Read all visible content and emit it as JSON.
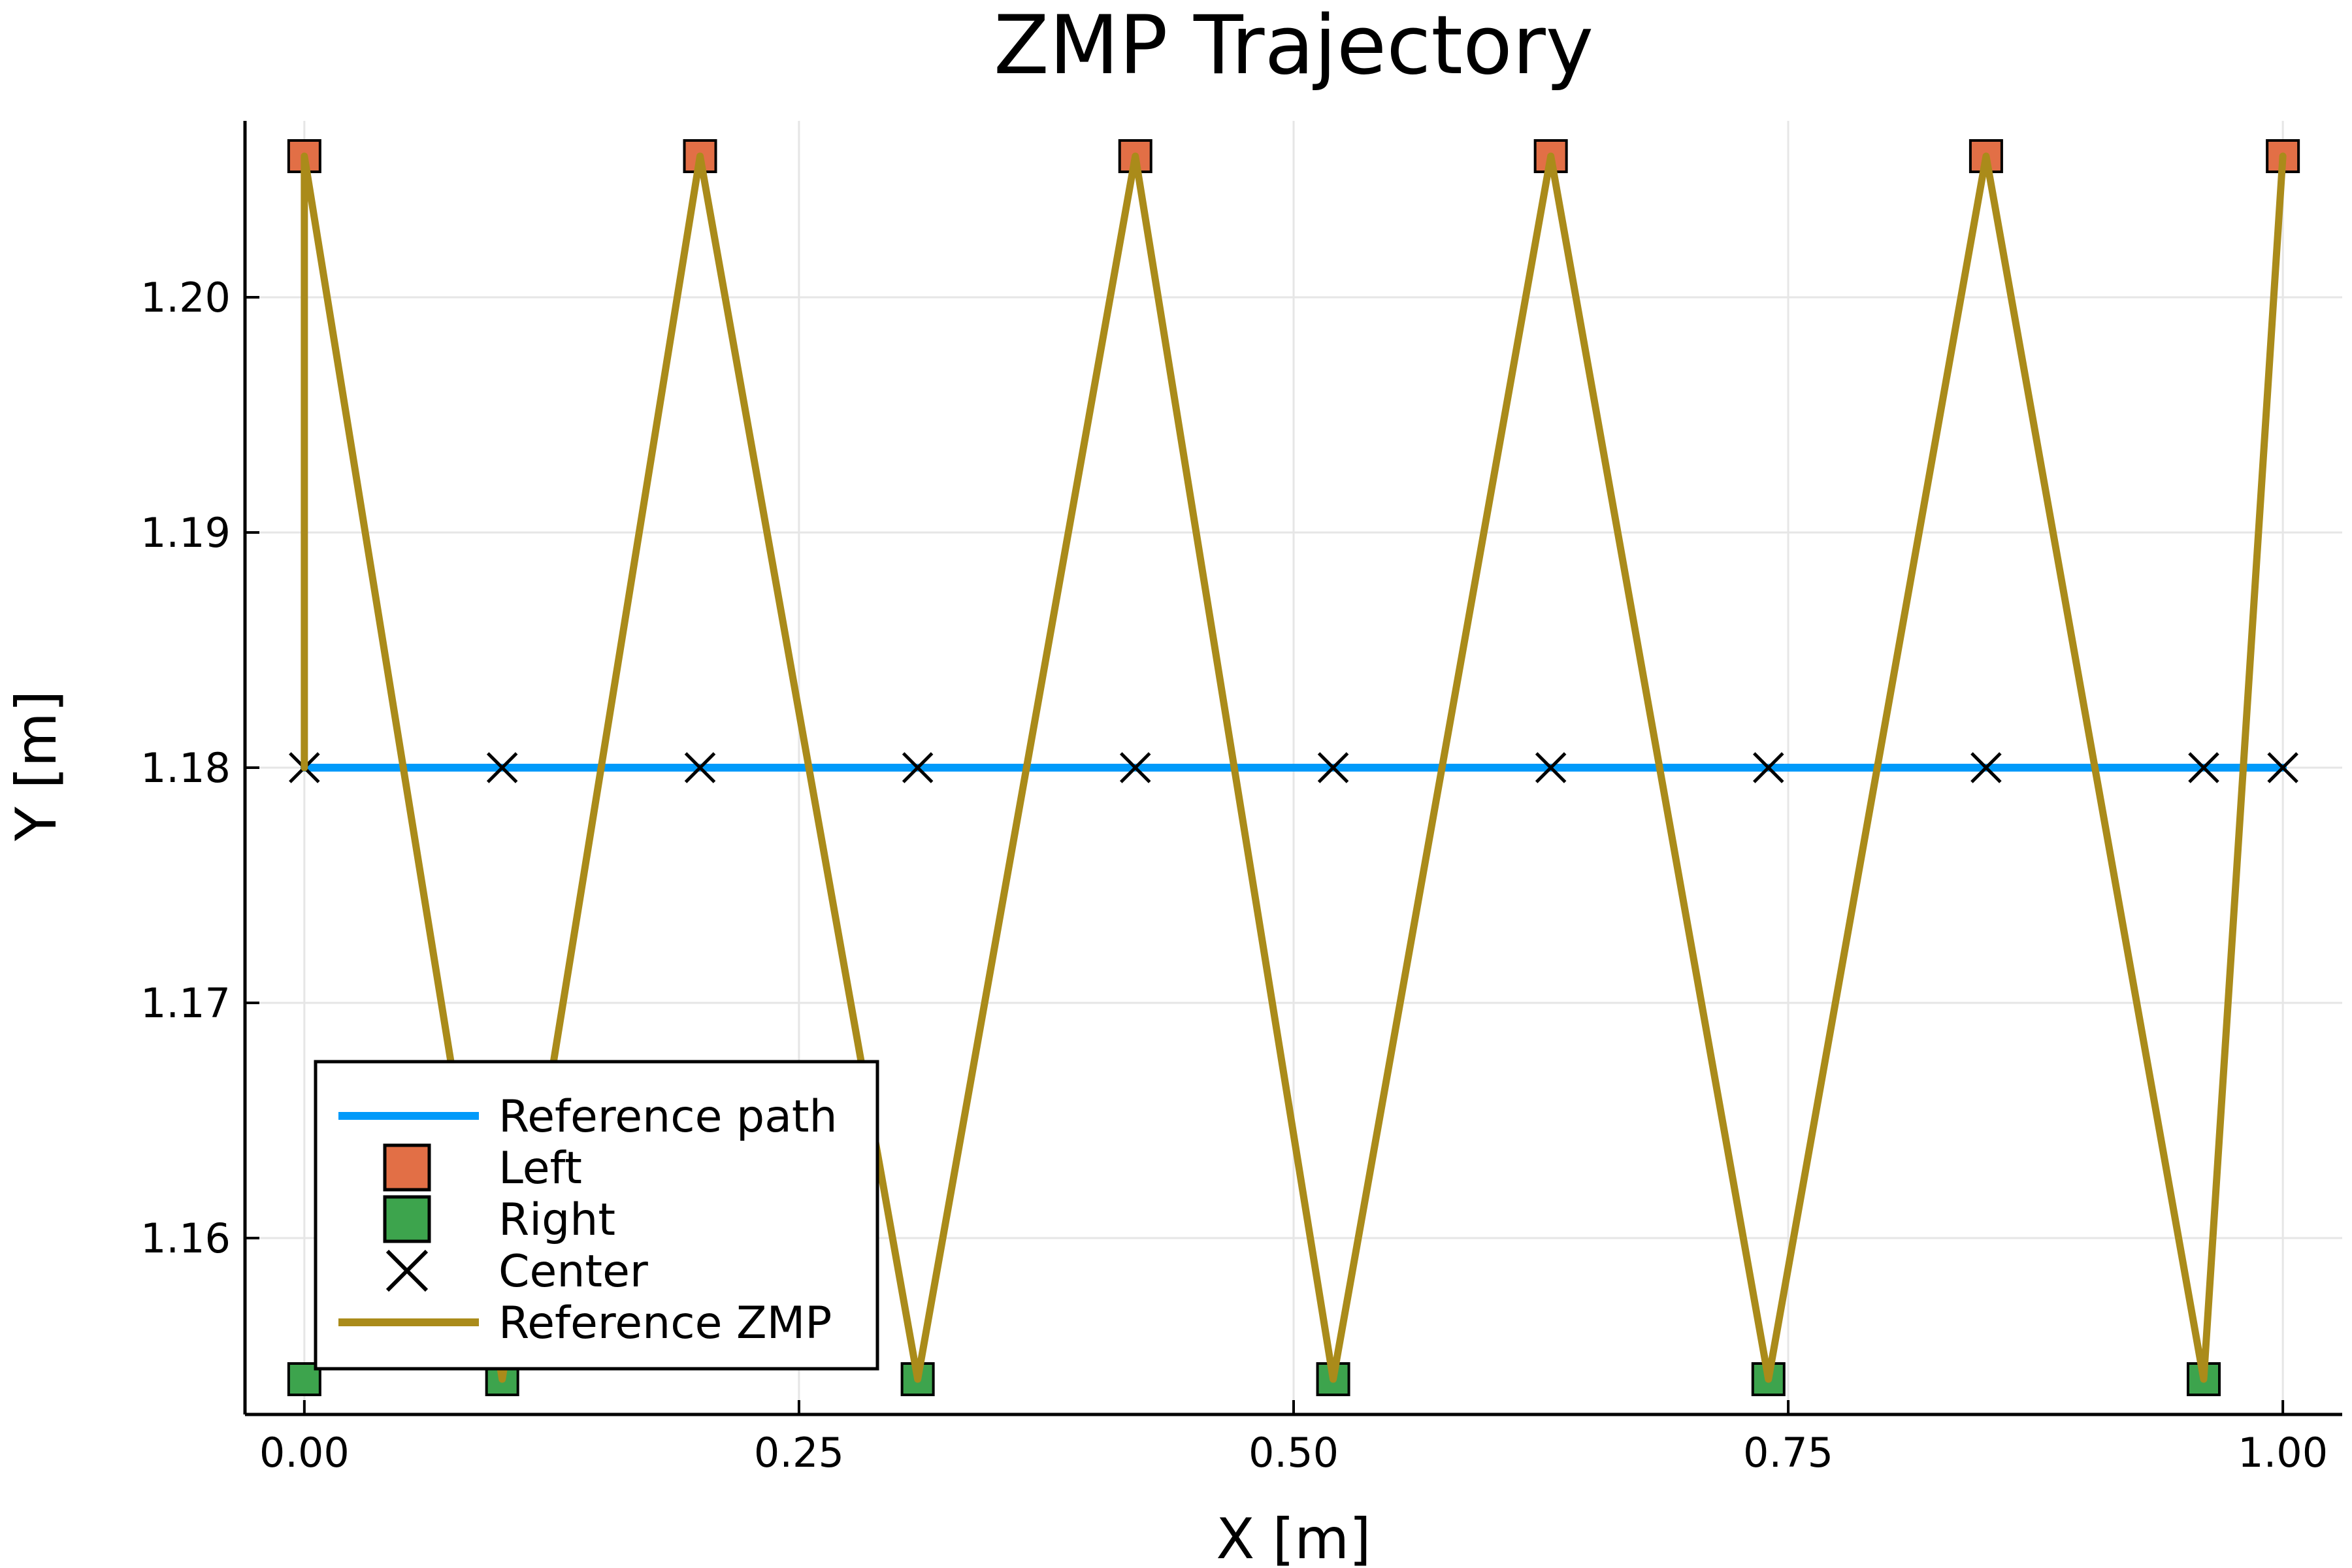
{
  "chart_data": {
    "type": "line",
    "title": "ZMP Trajectory",
    "xlabel": "X [m]",
    "ylabel": "Y [m]",
    "xlim": [
      -0.03,
      1.03
    ],
    "ylim": [
      1.1525,
      1.2075
    ],
    "xticks": [
      0.0,
      0.25,
      0.5,
      0.75,
      1.0
    ],
    "xtick_labels": [
      "0.00",
      "0.25",
      "0.50",
      "0.75",
      "1.00"
    ],
    "yticks": [
      1.16,
      1.17,
      1.18,
      1.19,
      1.2
    ],
    "ytick_labels": [
      "1.16",
      "1.17",
      "1.18",
      "1.19",
      "1.20"
    ],
    "grid": true,
    "legend_position": "bottom-left",
    "series": [
      {
        "name": "Reference path",
        "kind": "line",
        "color": "#009AFA",
        "x": [
          0.0,
          1.0
        ],
        "y": [
          1.18,
          1.18
        ]
      },
      {
        "name": "Left",
        "kind": "scatter",
        "marker": "square",
        "color": "#E26F46",
        "x": [
          0.0,
          0.2,
          0.42,
          0.63,
          0.85,
          1.0
        ],
        "y": [
          1.206,
          1.206,
          1.206,
          1.206,
          1.206,
          1.206
        ]
      },
      {
        "name": "Right",
        "kind": "scatter",
        "marker": "square",
        "color": "#3DA44D",
        "x": [
          0.0,
          0.1,
          0.31,
          0.52,
          0.74,
          0.96
        ],
        "y": [
          1.154,
          1.154,
          1.154,
          1.154,
          1.154,
          1.154
        ]
      },
      {
        "name": "Center",
        "kind": "scatter",
        "marker": "x",
        "color": "#000000",
        "x": [
          0.0,
          0.1,
          0.2,
          0.31,
          0.42,
          0.52,
          0.63,
          0.74,
          0.85,
          0.96,
          1.0
        ],
        "y": [
          1.18,
          1.18,
          1.18,
          1.18,
          1.18,
          1.18,
          1.18,
          1.18,
          1.18,
          1.18,
          1.18
        ]
      },
      {
        "name": "Reference ZMP",
        "kind": "line",
        "color": "#AA8B1A",
        "x": [
          0.0,
          0.0,
          0.1,
          0.2,
          0.31,
          0.42,
          0.52,
          0.63,
          0.74,
          0.85,
          0.96,
          1.0
        ],
        "y": [
          1.18,
          1.206,
          1.154,
          1.206,
          1.154,
          1.206,
          1.154,
          1.206,
          1.154,
          1.206,
          1.154,
          1.206
        ]
      }
    ]
  }
}
